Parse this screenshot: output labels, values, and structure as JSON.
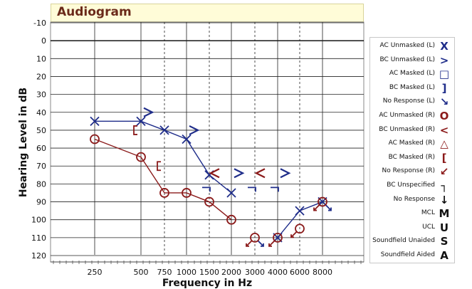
{
  "window": {
    "title": "Audiogram"
  },
  "chart_data": {
    "type": "scatter",
    "title": "Audiogram",
    "xlabel": "Frequency in Hz",
    "ylabel": "Hearing Level in dB",
    "x_ticks": [
      "250",
      "500",
      "750",
      "1000",
      "1500",
      "2000",
      "3000",
      "4000",
      "6000",
      "8000"
    ],
    "y_ticks": [
      "-10",
      "0",
      "10",
      "20",
      "30",
      "40",
      "50",
      "60",
      "70",
      "80",
      "90",
      "100",
      "110",
      "120"
    ],
    "ylim": [
      -10,
      120
    ],
    "y_inverted": true,
    "grid": true,
    "legend_position": "right",
    "series": [
      {
        "name": "AC Unmasked (L)",
        "symbol": "X",
        "color": "#1f2d8a",
        "connected": true,
        "points": [
          [
            250,
            45
          ],
          [
            500,
            45
          ],
          [
            750,
            50
          ],
          [
            1000,
            55
          ],
          [
            1500,
            75
          ],
          [
            2000,
            85
          ]
        ]
      },
      {
        "name": "AC Unmasked (L)",
        "symbol": "X",
        "color": "#1f2d8a",
        "connected": true,
        "points": [
          [
            4000,
            110
          ],
          [
            6000,
            95
          ],
          [
            8000,
            90
          ]
        ]
      },
      {
        "name": "BC Unmasked (L)",
        "symbol": ">",
        "color": "#1f2d8a",
        "connected": false,
        "points": [
          [
            500,
            40
          ],
          [
            1000,
            50
          ],
          [
            2000,
            74
          ],
          [
            4000,
            74
          ]
        ]
      },
      {
        "name": "No Response (L)",
        "symbol": "↘",
        "color": "#1f2d8a",
        "connected": false,
        "points": [
          [
            3000,
            110
          ],
          [
            8000,
            90
          ]
        ]
      },
      {
        "name": "AC Unmasked (R)",
        "symbol": "O",
        "color": "#8b1a1a",
        "connected": true,
        "points": [
          [
            250,
            55
          ],
          [
            500,
            65
          ],
          [
            750,
            85
          ],
          [
            1000,
            85
          ],
          [
            1500,
            90
          ],
          [
            2000,
            100
          ]
        ]
      },
      {
        "name": "AC Unmasked (R)",
        "symbol": "O",
        "color": "#8b1a1a",
        "connected": false,
        "points": [
          [
            3000,
            110
          ],
          [
            4000,
            110
          ],
          [
            6000,
            105
          ],
          [
            8000,
            90
          ]
        ]
      },
      {
        "name": "BC Unmasked (R)",
        "symbol": "<",
        "color": "#8b1a1a",
        "connected": false,
        "points": [
          [
            1500,
            74
          ],
          [
            3000,
            74
          ]
        ]
      },
      {
        "name": "BC Masked (R)",
        "symbol": "[",
        "color": "#8b1a1a",
        "connected": false,
        "points": [
          [
            500,
            50
          ],
          [
            750,
            70
          ]
        ]
      },
      {
        "name": "No Response (R)",
        "symbol": "↙",
        "color": "#8b1a1a",
        "connected": false,
        "points": [
          [
            3000,
            110
          ],
          [
            4000,
            110
          ],
          [
            6000,
            105
          ],
          [
            8000,
            90
          ]
        ]
      },
      {
        "name": "BC Unspecified",
        "symbol": "¬",
        "color": "#1f2d8a",
        "connected": false,
        "points": [
          [
            1500,
            80
          ],
          [
            3000,
            80
          ],
          [
            4000,
            80
          ]
        ]
      }
    ]
  },
  "legend": {
    "items": [
      {
        "label": "AC Unmasked (L)",
        "symbol": "X",
        "color": "#1f2d8a"
      },
      {
        "label": "BC Unmasked (L)",
        "symbol": ">",
        "color": "#1f2d8a"
      },
      {
        "label": "AC Masked (L)",
        "symbol": "□",
        "color": "#1f2d8a"
      },
      {
        "label": "BC Masked (L)",
        "symbol": "]",
        "color": "#1f2d8a"
      },
      {
        "label": "No Response (L)",
        "symbol": "↘",
        "color": "#1f2d8a"
      },
      {
        "label": "AC Unmasked (R)",
        "symbol": "O",
        "color": "#8b1a1a"
      },
      {
        "label": "BC Unmasked (R)",
        "symbol": "<",
        "color": "#8b1a1a"
      },
      {
        "label": "AC Masked (R)",
        "symbol": "△",
        "color": "#8b1a1a"
      },
      {
        "label": "BC Masked (R)",
        "symbol": "[",
        "color": "#8b1a1a"
      },
      {
        "label": "No Response (R)",
        "symbol": "↙",
        "color": "#8b1a1a"
      },
      {
        "label": "BC Unspecified",
        "symbol": "┐",
        "color": "#111111"
      },
      {
        "label": "No Response",
        "symbol": "↓",
        "color": "#111111"
      },
      {
        "label": "MCL",
        "symbol": "M",
        "color": "#111111"
      },
      {
        "label": "UCL",
        "symbol": "U",
        "color": "#111111"
      },
      {
        "label": "Soundfield Unaided",
        "symbol": "S",
        "color": "#111111"
      },
      {
        "label": "Soundfield Aided",
        "symbol": "A",
        "color": "#111111"
      }
    ]
  },
  "colors": {
    "left_ear": "#1f2d8a",
    "right_ear": "#8b1a1a",
    "title_bg": "#fffcd8",
    "title_text": "#6b2a1a"
  }
}
